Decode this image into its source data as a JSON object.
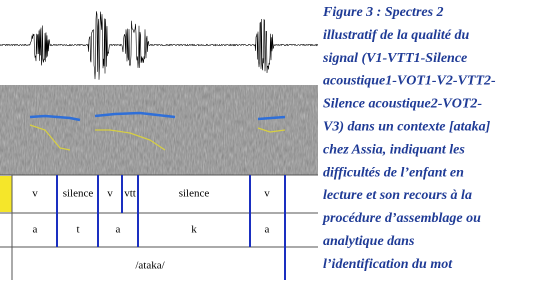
{
  "figure": {
    "tiers": [
      {
        "labels": [
          "v",
          "silence",
          "v",
          "vtt",
          "silence",
          "v"
        ]
      },
      {
        "labels": [
          "a",
          "t",
          "a",
          "k",
          "a"
        ]
      },
      {
        "labels": [
          "/ataka/"
        ]
      }
    ],
    "caption_lines": [
      "Figure 3 : Spectres 2",
      "illustratif de la  qualité du",
      "signal (V1-VTT1-Silence",
      "acoustique1-VOT1-V2-VTT2-",
      "Silence acoustique2-VOT2-",
      "V3) dans un contexte [ataka]",
      "chez  Assia, indiquant les",
      "difficultés de l’enfant en",
      "lecture et son recours à la",
      "procédure d’assemblage ou",
      "analytique dans",
      "l’identification du mot"
    ]
  }
}
